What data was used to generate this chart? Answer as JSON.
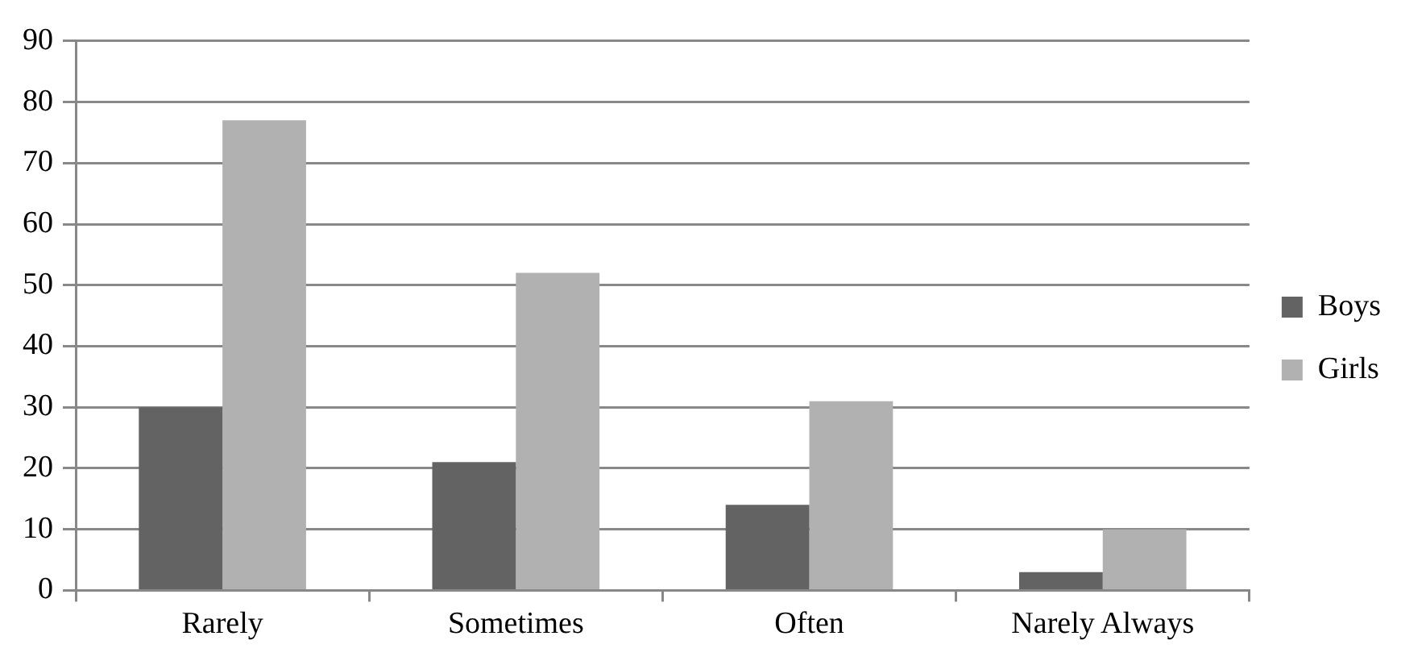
{
  "chart_data": {
    "type": "bar",
    "categories": [
      "Rarely",
      "Sometimes",
      "Often",
      "Narely Always"
    ],
    "series": [
      {
        "name": "Boys",
        "color": "#636363",
        "values": [
          30,
          21,
          14,
          3
        ]
      },
      {
        "name": "Girls",
        "color": "#b1b1b1",
        "values": [
          77,
          52,
          31,
          10
        ]
      }
    ],
    "ylim": [
      0,
      90
    ],
    "yticks": [
      0,
      10,
      20,
      30,
      40,
      50,
      60,
      70,
      80,
      90
    ],
    "grid": "y",
    "legend": "right"
  }
}
